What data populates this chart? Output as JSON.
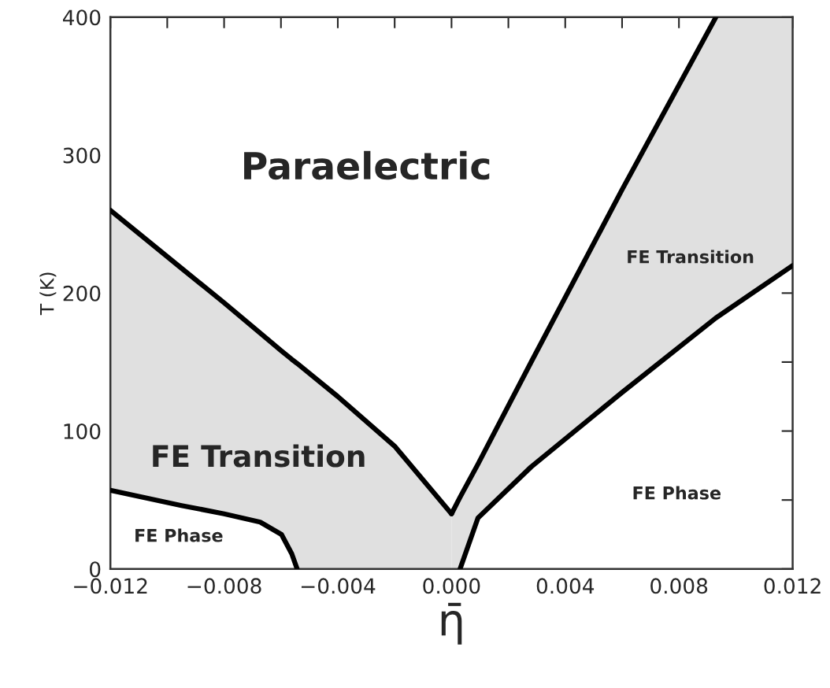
{
  "chart_data": {
    "type": "line",
    "xlabel": "η̄",
    "ylabel": "T (K)",
    "xlim": [
      -0.012,
      0.012
    ],
    "ylim": [
      0,
      400
    ],
    "xticks": [
      {
        "value": -0.012,
        "label": "−0.012"
      },
      {
        "value": -0.01,
        "label": null
      },
      {
        "value": -0.008,
        "label": "−0.008"
      },
      {
        "value": -0.006,
        "label": null
      },
      {
        "value": -0.004,
        "label": "−0.004"
      },
      {
        "value": -0.002,
        "label": null
      },
      {
        "value": 0.0,
        "label": "0.000"
      },
      {
        "value": 0.002,
        "label": null
      },
      {
        "value": 0.004,
        "label": "0.004"
      },
      {
        "value": 0.006,
        "label": null
      },
      {
        "value": 0.008,
        "label": "0.008"
      },
      {
        "value": 0.01,
        "label": null
      },
      {
        "value": 0.012,
        "label": "0.012"
      }
    ],
    "yticks": [
      0,
      {
        "value": 50,
        "label": null
      },
      100,
      {
        "value": 150,
        "label": null
      },
      200,
      {
        "value": 250,
        "label": null
      },
      300,
      {
        "value": 350,
        "label": null
      },
      400
    ],
    "grid": false,
    "series": [
      {
        "color": "#000000",
        "x": [
          -0.012,
          -0.0095,
          -0.008,
          -0.00673,
          -0.00598,
          -0.00562,
          -0.00543,
          -0.004,
          -0.002,
          0.0
        ],
        "values": [
          260,
          218,
          193,
          171,
          158,
          152,
          149,
          125,
          89,
          40
        ],
        "lower": [
          57,
          46,
          40,
          34,
          25,
          11,
          0,
          0,
          0,
          0
        ],
        "upper": [
          260,
          218,
          193,
          171,
          158,
          152,
          149,
          125,
          89,
          40
        ]
      },
      {
        "color": "#000000",
        "x": [
          -0.012,
          -0.0095,
          -0.008,
          -0.00673,
          -0.00598,
          -0.00562,
          -0.00543
        ],
        "values": [
          57,
          46,
          40,
          34,
          25,
          11,
          0
        ]
      },
      {
        "color": "#000000",
        "x": [
          0.0,
          0.0003,
          0.00093,
          0.0028,
          0.006,
          0.0093,
          0.012
        ],
        "values": [
          40,
          52,
          76,
          150,
          275,
          400,
          null
        ],
        "lower": [
          0,
          0,
          37,
          74,
          128,
          182,
          220
        ],
        "upper": [
          40,
          52,
          76,
          150,
          275,
          400,
          400
        ]
      },
      {
        "color": "#000000",
        "x": [
          0.0003,
          0.00093,
          0.0028,
          0.006,
          0.0093,
          0.012
        ],
        "values": [
          0,
          37,
          74,
          128,
          182,
          220
        ]
      }
    ],
    "annotations": [
      "Paraelectric",
      "FE Transition",
      "FE Phase",
      "FE Transition",
      "FE Phase"
    ]
  }
}
